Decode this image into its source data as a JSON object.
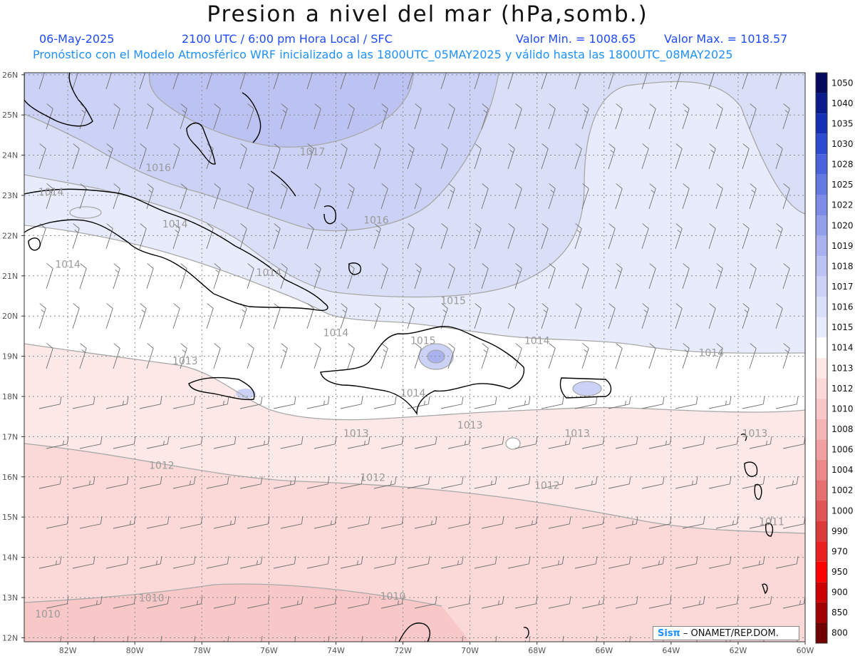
{
  "header": {
    "title": "Presion a nivel del mar (hPa,somb.)",
    "date": "06-May-2025",
    "time_info": "2100 UTC / 6:00 pm Hora Local / SFC",
    "value_min": "Valor Min. = 1008.65",
    "value_max": "Valor Max. = 1018.57",
    "forecast_info": "Pronóstico con el Modelo Atmosférico WRF inicializado a las 1800UTC_05MAY2025 y válido hasta las  1800UTC_08MAY2025"
  },
  "map": {
    "lat_labels": [
      "26N",
      "25N",
      "24N",
      "23N",
      "22N",
      "21N",
      "20N",
      "19N",
      "18N",
      "17N",
      "16N",
      "15N",
      "14N",
      "13N",
      "12N"
    ],
    "lon_labels": [
      "82W",
      "80W",
      "78W",
      "76W",
      "74W",
      "72W",
      "70W",
      "68W",
      "66W",
      "64W",
      "62W",
      "60W"
    ],
    "isobar_labels": [
      {
        "text": "1016",
        "lon": -79.3,
        "lat": 23.6
      },
      {
        "text": "1017",
        "lon": -74.7,
        "lat": 24.0
      },
      {
        "text": "1014",
        "lon": -82.5,
        "lat": 23.0
      },
      {
        "text": "1014",
        "lon": -78.8,
        "lat": 22.2
      },
      {
        "text": "1016",
        "lon": -72.8,
        "lat": 22.3
      },
      {
        "text": "1014",
        "lon": -82.0,
        "lat": 21.2
      },
      {
        "text": "1014",
        "lon": -76.0,
        "lat": 21.0
      },
      {
        "text": "1015",
        "lon": -70.5,
        "lat": 20.3
      },
      {
        "text": "1014",
        "lon": -74.0,
        "lat": 19.5
      },
      {
        "text": "1015",
        "lon": -71.4,
        "lat": 19.3
      },
      {
        "text": "1014",
        "lon": -68.0,
        "lat": 19.3
      },
      {
        "text": "1014",
        "lon": -62.8,
        "lat": 19.0
      },
      {
        "text": "1013",
        "lon": -78.5,
        "lat": 18.8
      },
      {
        "text": "1014",
        "lon": -71.7,
        "lat": 18.0
      },
      {
        "text": "1013",
        "lon": -73.4,
        "lat": 17.0
      },
      {
        "text": "1013",
        "lon": -70.0,
        "lat": 17.2
      },
      {
        "text": "1013",
        "lon": -66.8,
        "lat": 17.0
      },
      {
        "text": "1013",
        "lon": -61.5,
        "lat": 17.0
      },
      {
        "text": "1012",
        "lon": -79.2,
        "lat": 16.2
      },
      {
        "text": "1012",
        "lon": -72.9,
        "lat": 15.9
      },
      {
        "text": "1012",
        "lon": -67.7,
        "lat": 15.7
      },
      {
        "text": "1011",
        "lon": -61.0,
        "lat": 14.8
      },
      {
        "text": "1010",
        "lon": -79.5,
        "lat": 12.9
      },
      {
        "text": "1010",
        "lon": -72.3,
        "lat": 12.95
      },
      {
        "text": "1010",
        "lon": -82.6,
        "lat": 12.5
      }
    ]
  },
  "colorbar": {
    "levels": [
      "1050",
      "1040",
      "1035",
      "1030",
      "1028",
      "1025",
      "1022",
      "1020",
      "1019",
      "1018",
      "1017",
      "1016",
      "1015",
      "1014",
      "1013",
      "1012",
      "1010",
      "1008",
      "1006",
      "1004",
      "1002",
      "1000",
      "990",
      "970",
      "950",
      "900",
      "850",
      "800"
    ],
    "colors": [
      "#050a5c",
      "#0c1b8c",
      "#1530b4",
      "#2c4bd0",
      "#4a63dc",
      "#6378e0",
      "#7d8ce6",
      "#949fea",
      "#a9b2ee",
      "#bcc3f2",
      "#ccd2f5",
      "#dadff8",
      "#e8ebfb",
      "#ffffff",
      "#fde8e8",
      "#fbd9d9",
      "#f8c8c8",
      "#f4b4b4",
      "#f0a0a0",
      "#eb8888",
      "#e67070",
      "#e05555",
      "#da3a3a",
      "#e82020",
      "#ff0000",
      "#cc0000",
      "#a00000",
      "#700000"
    ]
  },
  "credit": {
    "logo": "Sisπ",
    "text": "– ONAMET/REP.DOM."
  }
}
